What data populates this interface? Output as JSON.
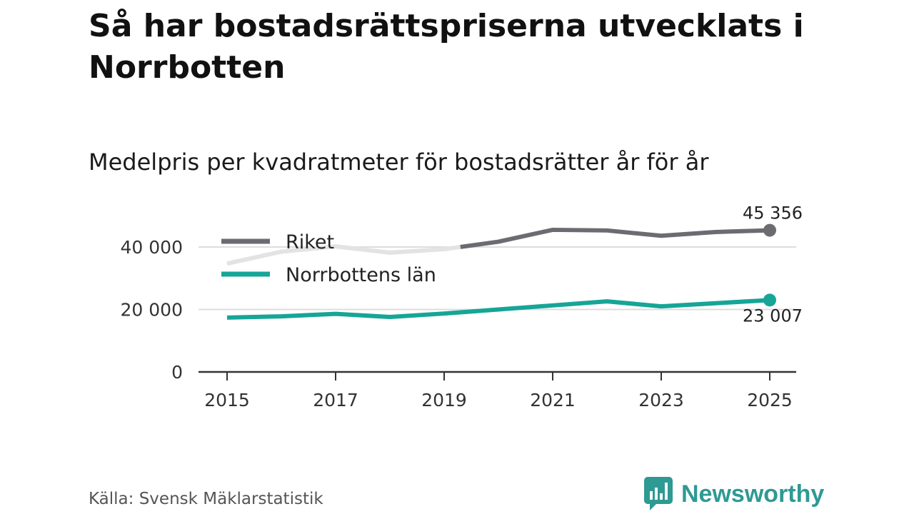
{
  "title": "Så har bostadsrättspriserna utvecklats i Norrbotten",
  "subtitle": "Medelpris per kvadratmeter för bostadsrätter år för år",
  "source": "Källa: Svensk Mäklarstatistik",
  "brand": "Newsworthy",
  "chart_data": {
    "type": "line",
    "title": "Medelpris per kvadratmeter för bostadsrätter år för år",
    "xlabel": "",
    "ylabel": "",
    "x": [
      2015,
      2016,
      2017,
      2018,
      2019,
      2020,
      2021,
      2022,
      2023,
      2024,
      2025
    ],
    "xticks": [
      2015,
      2017,
      2019,
      2021,
      2023,
      2025
    ],
    "xtick_labels": [
      "2015",
      "2017",
      "2019",
      "2021",
      "2023",
      "2025"
    ],
    "yticks": [
      0,
      20000,
      40000
    ],
    "ytick_labels": [
      "0",
      "20 000",
      "40 000"
    ],
    "ylim": [
      0,
      48000
    ],
    "grid": true,
    "legend_position": "top-left",
    "series": [
      {
        "name": "Riket",
        "color": "#6b6b72",
        "faded_color": "#e3e3e3",
        "faded_until": 2019.3,
        "values": [
          34700,
          38500,
          40200,
          38200,
          39300,
          41700,
          45500,
          45300,
          43600,
          44800,
          45356
        ],
        "end_label": "45 356"
      },
      {
        "name": "Norrbottens län",
        "color": "#16a597",
        "values": [
          17400,
          17800,
          18600,
          17600,
          18700,
          20000,
          21300,
          22600,
          21000,
          22000,
          23007
        ],
        "end_label": "23 007"
      }
    ]
  }
}
